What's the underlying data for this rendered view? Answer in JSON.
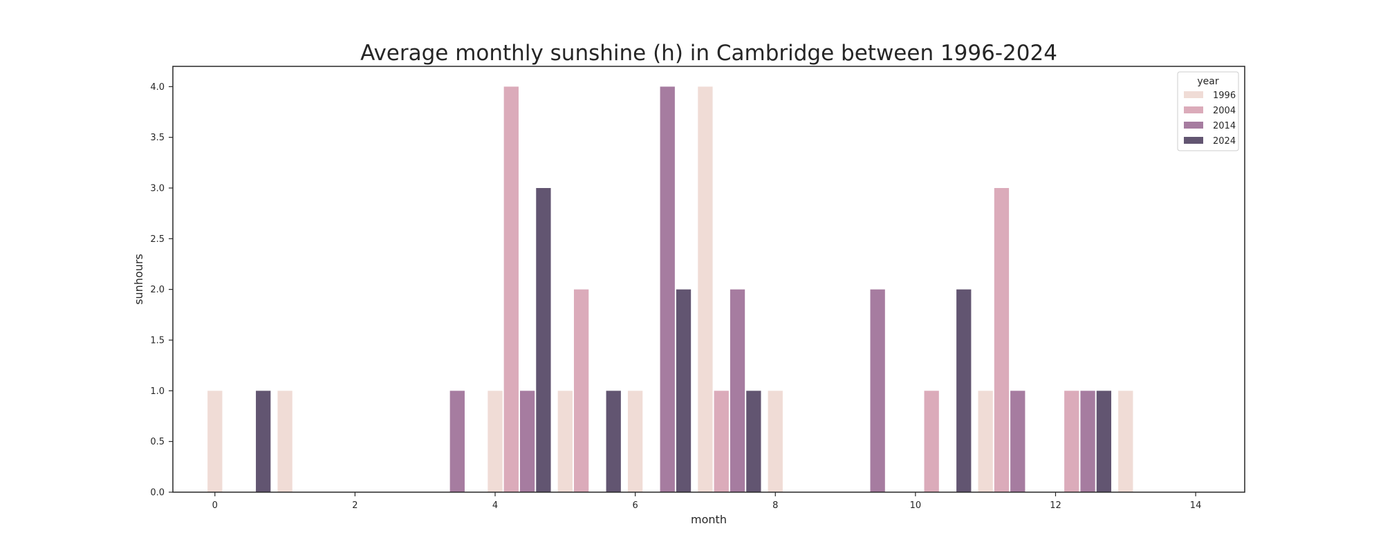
{
  "chart_data": {
    "type": "bar",
    "title": "Average monthly sunshine (h) in Cambridge between 1996-2024",
    "xlabel": "month",
    "ylabel": "sunhours",
    "xlim": [
      -0.6,
      14.7
    ],
    "ylim": [
      0,
      4.2
    ],
    "x_ticks": [
      0,
      2,
      4,
      6,
      8,
      10,
      12,
      14
    ],
    "y_ticks": [
      0.0,
      0.5,
      1.0,
      1.5,
      2.0,
      2.5,
      3.0,
      3.5,
      4.0
    ],
    "bar_width": 0.23,
    "grid": false,
    "legend": {
      "title": "year",
      "placement": "top-right"
    },
    "series": [
      {
        "name": "1996",
        "color": "#f0dcd6",
        "offset": 0,
        "points": [
          [
            0,
            1
          ],
          [
            1,
            1
          ],
          [
            4,
            1
          ],
          [
            5,
            1
          ],
          [
            6,
            1
          ],
          [
            7,
            4
          ],
          [
            8,
            1
          ],
          [
            11,
            1
          ],
          [
            13,
            1
          ]
        ]
      },
      {
        "name": "2004",
        "color": "#dbabba",
        "offset": 1,
        "points": [
          [
            4,
            4
          ],
          [
            5,
            2
          ],
          [
            7,
            1
          ],
          [
            10,
            1
          ],
          [
            11,
            3
          ],
          [
            12,
            1
          ]
        ]
      },
      {
        "name": "2014",
        "color": "#a67ca0",
        "offset": 2,
        "points": [
          [
            3,
            1
          ],
          [
            4,
            1
          ],
          [
            6,
            4
          ],
          [
            7,
            2
          ],
          [
            9,
            2
          ],
          [
            11,
            1
          ],
          [
            12,
            1
          ]
        ]
      },
      {
        "name": "2024",
        "color": "#625571",
        "offset": 3,
        "points": [
          [
            0,
            1
          ],
          [
            4,
            3
          ],
          [
            5,
            1
          ],
          [
            6,
            2
          ],
          [
            7,
            1
          ],
          [
            10,
            2
          ],
          [
            12,
            1
          ]
        ]
      }
    ]
  }
}
